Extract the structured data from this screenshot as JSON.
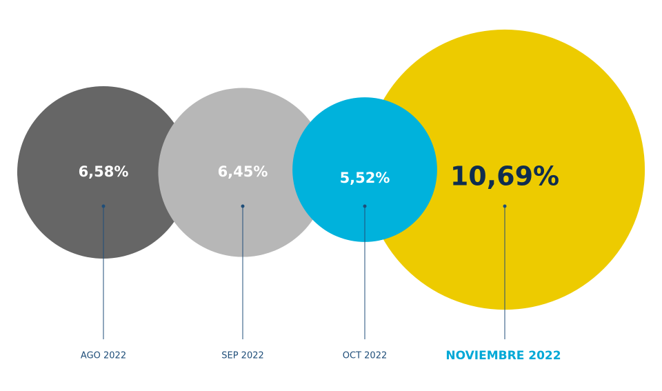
{
  "chart_data": {
    "type": "bubble",
    "categories": [
      "AGO 2022",
      "SEP 2022",
      "OCT 2022",
      "NOVIEMBRE 2022"
    ],
    "values": [
      6.58,
      6.45,
      5.52,
      10.69
    ],
    "value_labels": [
      "6,58%",
      "6,45%",
      "5,52%",
      "10,69%"
    ],
    "colors": [
      "#666666",
      "#b7b7b7",
      "#00b2dc",
      "#edcb00"
    ]
  }
}
